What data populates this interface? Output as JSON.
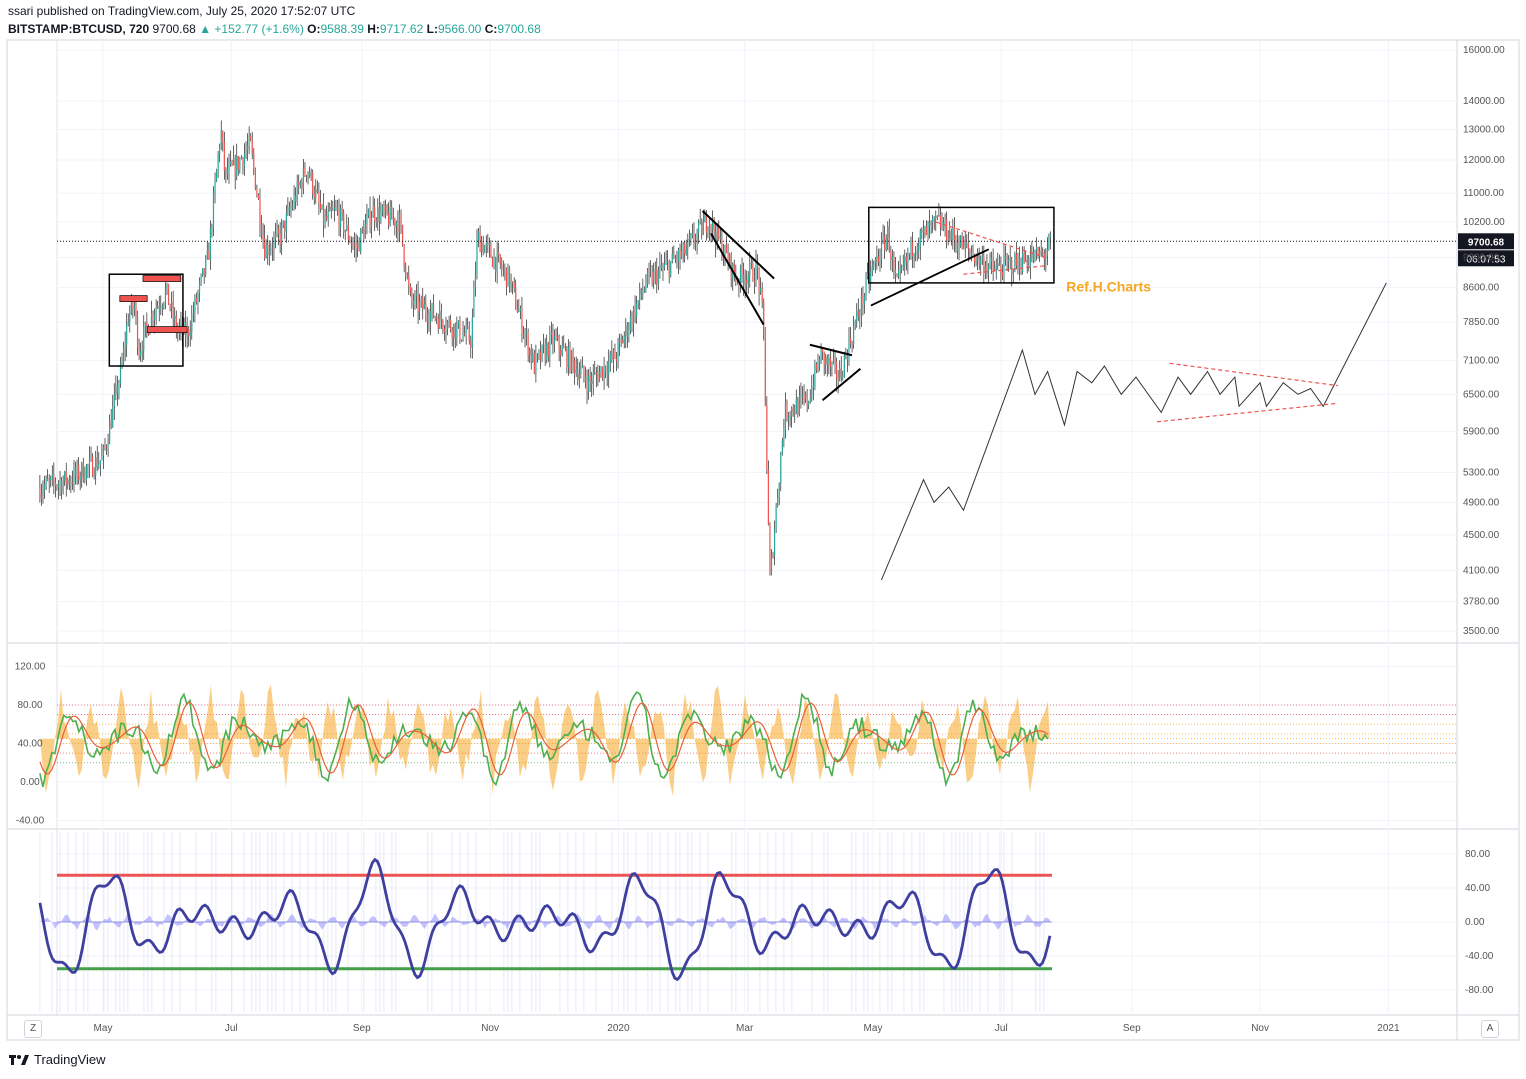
{
  "header": {
    "publisher": "ssari published on TradingView.com, July 25, 2020 17:52:07 UTC",
    "symbol": "BITSTAMP:BTCUSD, 720",
    "price": "9700.68",
    "change": "▲ +152.77 (+1.6%)",
    "o_label": "O:",
    "o_value": "9588.39",
    "h_label": "H:",
    "h_value": "9717.62",
    "l_label": "L:",
    "l_value": "9566.00",
    "c_label": "C:",
    "c_value": "9700.68"
  },
  "chart_data": [
    {
      "type": "line",
      "title": "BITSTAMP:BTCUSD, 720",
      "scale": "log",
      "ylim": [
        3350,
        16400
      ],
      "y_ticks": [
        16000,
        14000,
        13000,
        12000,
        11000,
        10200,
        9300,
        8600,
        7850,
        7100,
        6500,
        5900,
        5300,
        4900,
        4500,
        4100,
        3780,
        3500
      ],
      "x_ticks": [
        "May",
        "Jul",
        "Sep",
        "Nov",
        "2020",
        "Mar",
        "May",
        "Jul",
        "Sep",
        "Nov",
        "2021"
      ],
      "last_price_label": "9700.68",
      "countdown_label": "06:07:53",
      "annotation": "Ref.H.Charts",
      "price_path": [
        [
          "2019-04-01",
          5100
        ],
        [
          "2019-04-15",
          5200
        ],
        [
          "2019-05-01",
          5500
        ],
        [
          "2019-05-10",
          7000
        ],
        [
          "2019-05-13",
          8000
        ],
        [
          "2019-05-16",
          8200
        ],
        [
          "2019-05-18",
          7300
        ],
        [
          "2019-05-25",
          8100
        ],
        [
          "2019-05-31",
          8500
        ],
        [
          "2019-06-05",
          7700
        ],
        [
          "2019-06-10",
          7600
        ],
        [
          "2019-06-20",
          9300
        ],
        [
          "2019-06-26",
          13000
        ],
        [
          "2019-06-28",
          11500
        ],
        [
          "2019-07-03",
          11800
        ],
        [
          "2019-07-10",
          12500
        ],
        [
          "2019-07-17",
          9500
        ],
        [
          "2019-07-24",
          9800
        ],
        [
          "2019-08-06",
          11800
        ],
        [
          "2019-08-14",
          10200
        ],
        [
          "2019-08-20",
          10500
        ],
        [
          "2019-08-29",
          9500
        ],
        [
          "2019-09-06",
          10500
        ],
        [
          "2019-09-19",
          10200
        ],
        [
          "2019-09-24",
          8300
        ],
        [
          "2019-10-06",
          8000
        ],
        [
          "2019-10-23",
          7500
        ],
        [
          "2019-10-26",
          9800
        ],
        [
          "2019-11-10",
          8800
        ],
        [
          "2019-11-22",
          7000
        ],
        [
          "2019-12-01",
          7500
        ],
        [
          "2019-12-18",
          6700
        ],
        [
          "2019-12-31",
          7200
        ],
        [
          "2020-01-14",
          8700
        ],
        [
          "2020-02-01",
          9400
        ],
        [
          "2020-02-13",
          10300
        ],
        [
          "2020-02-26",
          8800
        ],
        [
          "2020-03-07",
          9000
        ],
        [
          "2020-03-10",
          7800
        ],
        [
          "2020-03-12",
          4800
        ],
        [
          "2020-03-13",
          4000
        ],
        [
          "2020-03-20",
          6200
        ],
        [
          "2020-03-31",
          6400
        ],
        [
          "2020-04-06",
          7200
        ],
        [
          "2020-04-15",
          6800
        ],
        [
          "2020-04-29",
          8800
        ],
        [
          "2020-05-08",
          9900
        ],
        [
          "2020-05-12",
          8600
        ],
        [
          "2020-05-20",
          9600
        ],
        [
          "2020-06-01",
          10200
        ],
        [
          "2020-06-10",
          9700
        ],
        [
          "2020-06-27",
          9000
        ],
        [
          "2020-07-10",
          9200
        ],
        [
          "2020-07-22",
          9400
        ],
        [
          "2020-07-25",
          9700
        ]
      ],
      "projection_path": [
        [
          "2020-05-05",
          4000
        ],
        [
          "2020-05-25",
          5200
        ],
        [
          "2020-05-30",
          4900
        ],
        [
          "2020-06-06",
          5100
        ],
        [
          "2020-06-13",
          4800
        ],
        [
          "2020-07-11",
          7300
        ],
        [
          "2020-07-17",
          6500
        ],
        [
          "2020-07-23",
          6900
        ],
        [
          "2020-07-31",
          6000
        ],
        [
          "2020-08-06",
          6900
        ],
        [
          "2020-08-13",
          6700
        ],
        [
          "2020-08-19",
          7000
        ],
        [
          "2020-08-27",
          6500
        ],
        [
          "2020-09-03",
          6800
        ],
        [
          "2020-09-15",
          6200
        ],
        [
          "2020-09-23",
          6800
        ],
        [
          "2020-09-29",
          6500
        ],
        [
          "2020-10-07",
          6900
        ],
        [
          "2020-10-13",
          6500
        ],
        [
          "2020-10-20",
          6800
        ],
        [
          "2020-10-22",
          6300
        ],
        [
          "2020-11-01",
          6700
        ],
        [
          "2020-11-04",
          6300
        ],
        [
          "2020-11-12",
          6700
        ],
        [
          "2020-11-19",
          6500
        ],
        [
          "2020-11-25",
          6600
        ],
        [
          "2020-12-01",
          6300
        ],
        [
          "2020-12-31",
          8700
        ]
      ]
    },
    {
      "type": "line",
      "title": "",
      "ylim": [
        -40,
        120
      ],
      "y_ticks": [
        120,
        80,
        40,
        0,
        -40
      ],
      "levels": [
        80,
        70,
        60,
        50,
        45,
        40,
        30,
        20
      ]
    },
    {
      "type": "line",
      "title": "",
      "ylim": [
        -100,
        100
      ],
      "y_ticks": [
        80,
        40,
        0,
        -40,
        -80
      ],
      "levels": [
        55,
        0,
        -55
      ]
    }
  ],
  "footer": {
    "brand": "TradingView",
    "z_label": "Z",
    "a_label": "A"
  },
  "colors": {
    "up": "#26a69a",
    "down": "#ef5350",
    "osc_green": "#4caf50",
    "osc_orange": "#f5a623",
    "osc_purple": "#3f3f9f"
  }
}
